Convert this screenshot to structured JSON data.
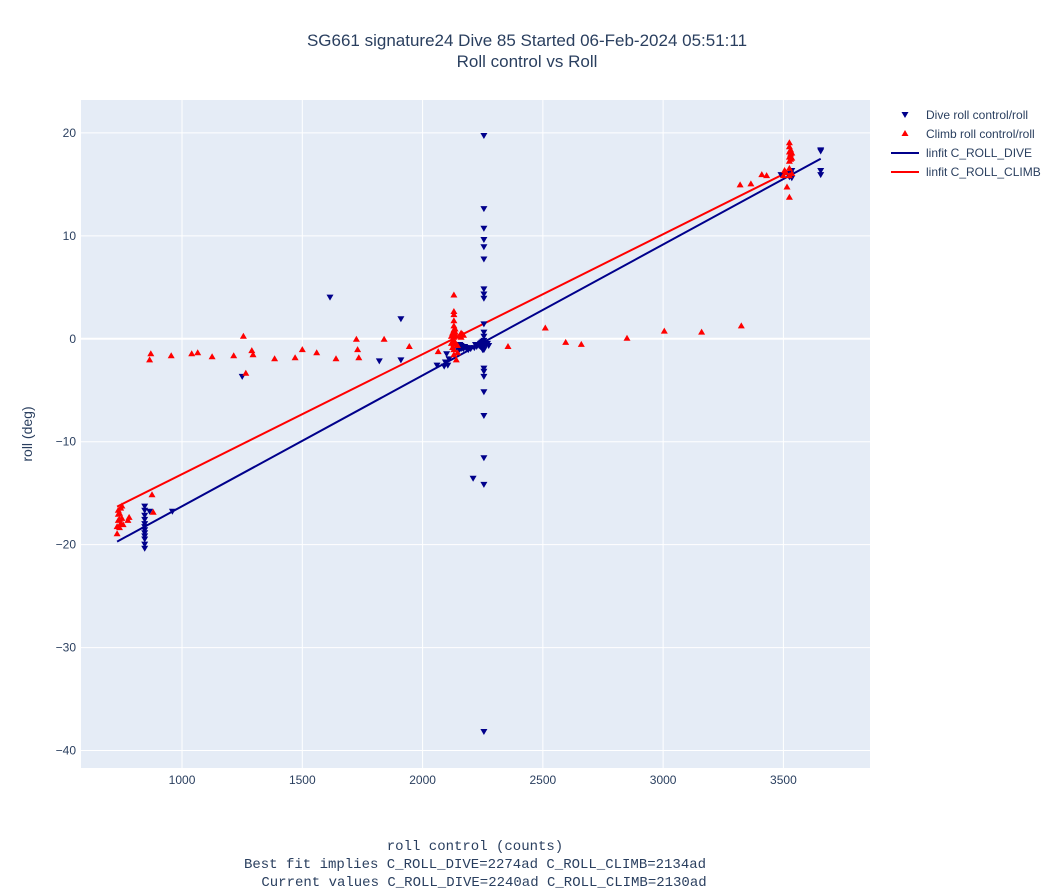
{
  "chart_data": {
    "type": "scatter",
    "title_lines": [
      "SG661 signature24 Dive 85 Started 06-Feb-2024 05:51:11",
      "Roll control vs Roll"
    ],
    "xlabel_lines": [
      "roll control (counts)",
      "Best fit implies C_ROLL_DIVE=2274ad C_ROLL_CLIMB=2134ad",
      "Current values C_ROLL_DIVE=2240ad C_ROLL_CLIMB=2130ad"
    ],
    "ylabel": "roll (deg)",
    "xlim": [
      580,
      3860
    ],
    "ylim": [
      -41.7,
      23.2
    ],
    "xticks": [
      1000,
      1500,
      2000,
      2500,
      3000,
      3500
    ],
    "yticks": [
      20,
      10,
      0,
      -10,
      -20,
      -30,
      -40
    ],
    "ytick_labels": [
      "20",
      "10",
      "0",
      "−10",
      "−20",
      "−30",
      "−40"
    ],
    "grid": true,
    "legend_position": "top-right",
    "colors": {
      "dive": "#00008b",
      "climb": "#ff0000",
      "plot_bg": "#e5ecf6",
      "grid": "#ffffff"
    },
    "series": [
      {
        "name": "Dive roll control/roll",
        "kind": "markers",
        "marker": "triangle-down",
        "color": "#00008b",
        "points": [
          [
            845,
            -16.3
          ],
          [
            845,
            -16.7
          ],
          [
            845,
            -17.2
          ],
          [
            845,
            -17.6
          ],
          [
            845,
            -18.0
          ],
          [
            845,
            -18.3
          ],
          [
            845,
            -18.6
          ],
          [
            845,
            -18.9
          ],
          [
            845,
            -19.2
          ],
          [
            845,
            -19.5
          ],
          [
            845,
            -20.0
          ],
          [
            845,
            -20.4
          ],
          [
            865,
            -16.8
          ],
          [
            960,
            -16.8
          ],
          [
            1250,
            -3.7
          ],
          [
            1615,
            4.0
          ],
          [
            1820,
            -2.2
          ],
          [
            1910,
            1.9
          ],
          [
            1910,
            -2.1
          ],
          [
            2060,
            -2.6
          ],
          [
            2090,
            -2.7
          ],
          [
            2095,
            -2.3
          ],
          [
            2100,
            -1.5
          ],
          [
            2105,
            -2.6
          ],
          [
            2110,
            -2.0
          ],
          [
            2145,
            -0.8
          ],
          [
            2150,
            -1.0
          ],
          [
            2150,
            -1.2
          ],
          [
            2155,
            -0.6
          ],
          [
            2155,
            -0.9
          ],
          [
            2160,
            -1.0
          ],
          [
            2160,
            -0.7
          ],
          [
            2165,
            -0.9
          ],
          [
            2170,
            -1.0
          ],
          [
            2175,
            -0.8
          ],
          [
            2180,
            -0.9
          ],
          [
            2185,
            -1.0
          ],
          [
            2190,
            -1.1
          ],
          [
            2195,
            -0.9
          ],
          [
            2200,
            -1.0
          ],
          [
            2210,
            -13.6
          ],
          [
            2215,
            -0.9
          ],
          [
            2220,
            -0.6
          ],
          [
            2225,
            -0.8
          ],
          [
            2230,
            -0.6
          ],
          [
            2235,
            -0.7
          ],
          [
            2240,
            -0.5
          ],
          [
            2240,
            -0.8
          ],
          [
            2245,
            -0.4
          ],
          [
            2250,
            -0.6
          ],
          [
            2250,
            -0.9
          ],
          [
            2250,
            -1.1
          ],
          [
            2250,
            -0.3
          ],
          [
            2250,
            -0.5
          ],
          [
            2250,
            -0.7
          ],
          [
            2255,
            19.7
          ],
          [
            2255,
            12.6
          ],
          [
            2255,
            10.7
          ],
          [
            2255,
            9.6
          ],
          [
            2255,
            8.9
          ],
          [
            2255,
            7.7
          ],
          [
            2255,
            4.8
          ],
          [
            2255,
            4.3
          ],
          [
            2255,
            3.9
          ],
          [
            2255,
            1.4
          ],
          [
            2255,
            0.6
          ],
          [
            2255,
            0.2
          ],
          [
            2255,
            -0.2
          ],
          [
            2255,
            -0.5
          ],
          [
            2255,
            -0.8
          ],
          [
            2255,
            -1.1
          ],
          [
            2255,
            -2.9
          ],
          [
            2255,
            -3.2
          ],
          [
            2255,
            -3.7
          ],
          [
            2255,
            -5.2
          ],
          [
            2255,
            -7.5
          ],
          [
            2255,
            -11.6
          ],
          [
            2255,
            -14.2
          ],
          [
            2255,
            -38.2
          ],
          [
            2260,
            -0.4
          ],
          [
            2265,
            -0.6
          ],
          [
            2270,
            -0.5
          ],
          [
            2275,
            -0.7
          ],
          [
            3490,
            15.9
          ],
          [
            3525,
            15.7
          ],
          [
            3530,
            16.0
          ],
          [
            3535,
            15.6
          ],
          [
            3535,
            16.3
          ],
          [
            3655,
            18.3
          ],
          [
            3655,
            18.2
          ],
          [
            3655,
            16.3
          ],
          [
            3655,
            15.9
          ]
        ]
      },
      {
        "name": "Climb roll control/roll",
        "kind": "markers",
        "marker": "triangle-up",
        "color": "#ff0000",
        "points": [
          [
            730,
            -18.9
          ],
          [
            730,
            -18.2
          ],
          [
            735,
            -17.6
          ],
          [
            735,
            -17.0
          ],
          [
            735,
            -16.6
          ],
          [
            740,
            -18.3
          ],
          [
            740,
            -17.5
          ],
          [
            740,
            -16.9
          ],
          [
            745,
            -16.4
          ],
          [
            745,
            -17.9
          ],
          [
            750,
            -16.2
          ],
          [
            750,
            -17.4
          ],
          [
            755,
            -18.0
          ],
          [
            775,
            -17.6
          ],
          [
            780,
            -17.3
          ],
          [
            865,
            -2.0
          ],
          [
            870,
            -1.4
          ],
          [
            875,
            -15.1
          ],
          [
            880,
            -16.8
          ],
          [
            955,
            -1.6
          ],
          [
            1040,
            -1.4
          ],
          [
            1065,
            -1.3
          ],
          [
            1125,
            -1.7
          ],
          [
            1215,
            -1.6
          ],
          [
            1255,
            0.3
          ],
          [
            1265,
            -3.3
          ],
          [
            1290,
            -1.1
          ],
          [
            1295,
            -1.5
          ],
          [
            1385,
            -1.9
          ],
          [
            1470,
            -1.8
          ],
          [
            1500,
            -1.0
          ],
          [
            1560,
            -1.3
          ],
          [
            1640,
            -1.9
          ],
          [
            1725,
            0.0
          ],
          [
            1730,
            -1.0
          ],
          [
            1735,
            -1.8
          ],
          [
            1840,
            0.0
          ],
          [
            1945,
            -0.7
          ],
          [
            2065,
            -1.2
          ],
          [
            2120,
            -0.4
          ],
          [
            2120,
            0.3
          ],
          [
            2125,
            -0.8
          ],
          [
            2125,
            0.6
          ],
          [
            2130,
            4.3
          ],
          [
            2130,
            2.7
          ],
          [
            2130,
            2.4
          ],
          [
            2130,
            1.8
          ],
          [
            2130,
            1.3
          ],
          [
            2130,
            0.9
          ],
          [
            2130,
            0.5
          ],
          [
            2130,
            0.2
          ],
          [
            2130,
            -0.1
          ],
          [
            2130,
            -0.5
          ],
          [
            2130,
            -1.0
          ],
          [
            2130,
            -1.5
          ],
          [
            2135,
            1.0
          ],
          [
            2135,
            -0.3
          ],
          [
            2135,
            0.7
          ],
          [
            2140,
            -2.0
          ],
          [
            2140,
            0.3
          ],
          [
            2145,
            -1.3
          ],
          [
            2145,
            -0.6
          ],
          [
            2155,
            0.4
          ],
          [
            2160,
            0.6
          ],
          [
            2160,
            0.2
          ],
          [
            2165,
            0.5
          ],
          [
            2170,
            0.4
          ],
          [
            2355,
            -0.7
          ],
          [
            2510,
            1.1
          ],
          [
            2595,
            -0.3
          ],
          [
            2660,
            -0.5
          ],
          [
            2850,
            0.1
          ],
          [
            3005,
            0.8
          ],
          [
            3160,
            0.7
          ],
          [
            3325,
            1.3
          ],
          [
            3320,
            15.0
          ],
          [
            3365,
            15.1
          ],
          [
            3410,
            16.0
          ],
          [
            3430,
            15.9
          ],
          [
            3500,
            15.9
          ],
          [
            3505,
            16.4
          ],
          [
            3510,
            16.2
          ],
          [
            3515,
            14.8
          ],
          [
            3525,
            19.1
          ],
          [
            3525,
            18.7
          ],
          [
            3525,
            18.2
          ],
          [
            3525,
            17.7
          ],
          [
            3525,
            17.3
          ],
          [
            3525,
            16.6
          ],
          [
            3525,
            15.9
          ],
          [
            3525,
            13.8
          ],
          [
            3530,
            18.4
          ],
          [
            3530,
            18.0
          ],
          [
            3530,
            17.5
          ],
          [
            3535,
            18.1
          ],
          [
            3535,
            17.6
          ],
          [
            3535,
            16.1
          ]
        ]
      },
      {
        "name": "linfit C_ROLL_DIVE",
        "kind": "line",
        "color": "#00008b",
        "points": [
          [
            730,
            -19.7
          ],
          [
            3655,
            17.5
          ]
        ]
      },
      {
        "name": "linfit C_ROLL_CLIMB",
        "kind": "line",
        "color": "#ff0000",
        "points": [
          [
            730,
            -16.3
          ],
          [
            3535,
            16.4
          ]
        ]
      }
    ]
  }
}
